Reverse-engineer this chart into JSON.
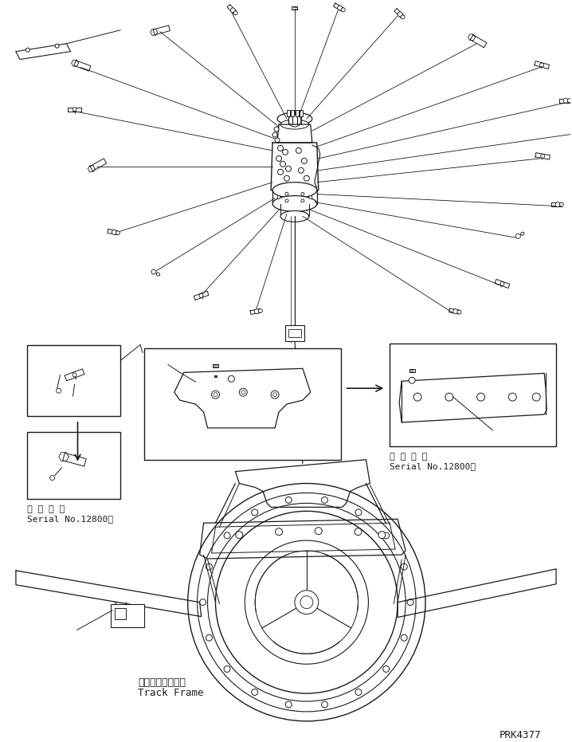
{
  "bg_color": "#ffffff",
  "line_color": "#1a1a1a",
  "fig_width": 7.18,
  "fig_height": 9.31,
  "dpi": 100,
  "part_number": "PRK4377",
  "label_track_frame_jp": "トラックフレーム",
  "label_track_frame_en": "Track Frame",
  "label_serial_jp": "適 用 号 機",
  "label_serial_en": "Serial No.12800～",
  "annotation_font": "monospace",
  "lw": 0.7
}
